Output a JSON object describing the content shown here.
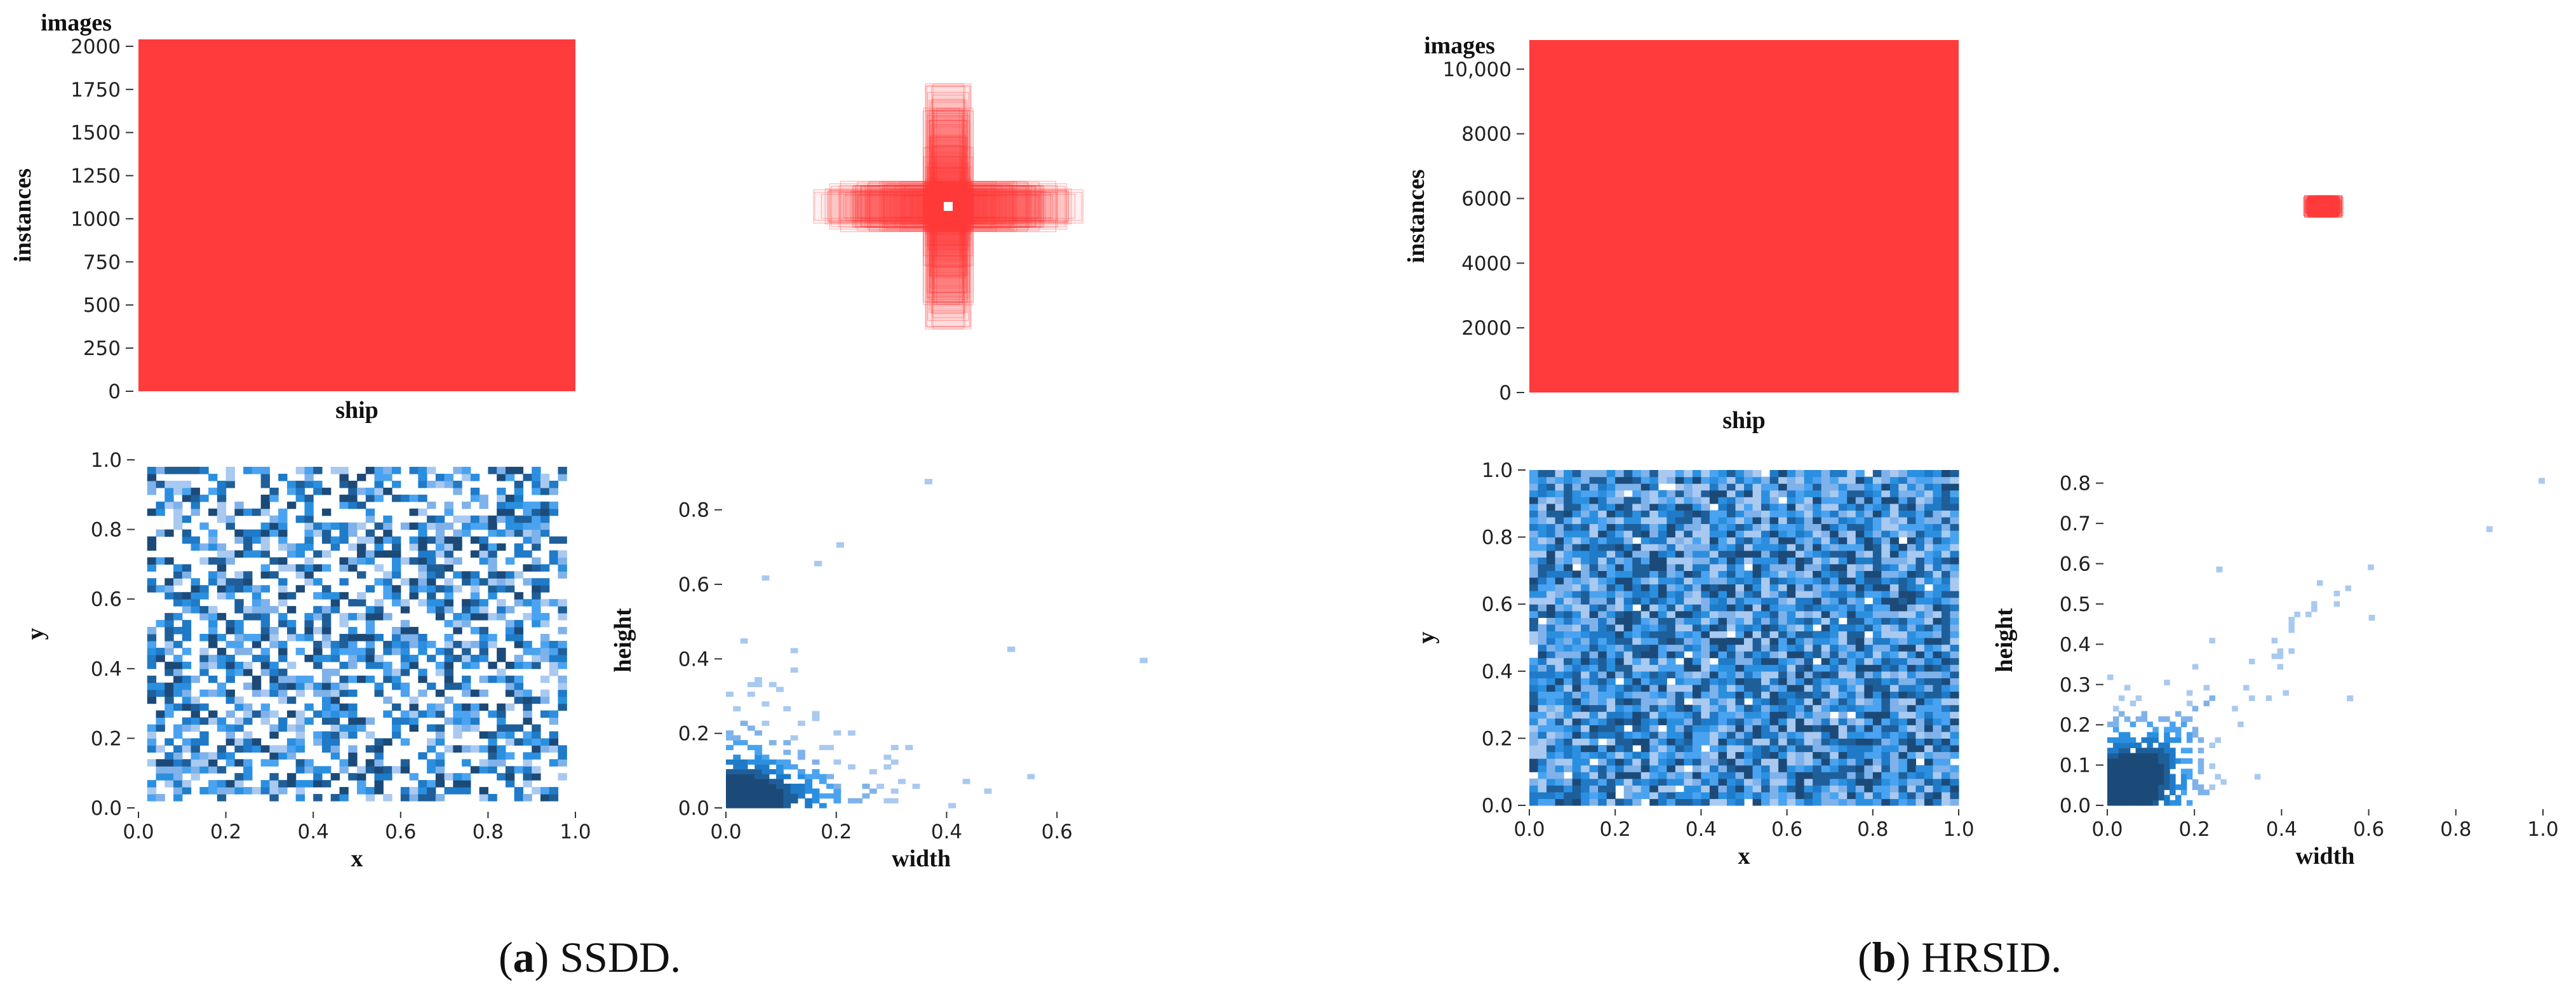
{
  "figure": {
    "panels": [
      {
        "caption_letter": "a",
        "caption_name": "SSDD.",
        "charts": [
          {
            "type": "bar",
            "categories": [
              "ship"
            ],
            "values": [
              2040
            ],
            "ylabel": "instances",
            "title": "images",
            "yticks": [
              "0",
              "250",
              "500",
              "750",
              "1000",
              "1250",
              "1500",
              "1750",
              "2000"
            ],
            "ytick_values": [
              0,
              250,
              500,
              750,
              1000,
              1250,
              1500,
              1750,
              2000
            ],
            "ylim": [
              0,
              2040
            ],
            "color": "#ff3b3b"
          },
          {
            "type": "box-overlay",
            "description_colors": "#ff3b3b",
            "center": [
              0.5,
              0.5
            ],
            "max_width": 0.75,
            "max_height": 0.88
          },
          {
            "type": "heatmap",
            "xlabel": "x",
            "ylabel": "y",
            "xlim": [
              0,
              1
            ],
            "ylim": [
              0,
              1
            ],
            "xticks": [
              "0.0",
              "0.2",
              "0.4",
              "0.6",
              "0.8",
              "1.0"
            ],
            "yticks": [
              "0.0",
              "0.2",
              "0.4",
              "0.6",
              "0.8",
              "1.0"
            ],
            "occupied_range_x": [
              0.03,
              0.97
            ],
            "occupied_range_y": [
              0.03,
              0.97
            ],
            "density": 0.55,
            "cmap": "blues"
          },
          {
            "type": "heatmap",
            "xlabel": "width",
            "ylabel": "height",
            "xlim": [
              0,
              0.8
            ],
            "ylim": [
              0,
              0.9
            ],
            "xticks": [
              "0.0",
              "0.2",
              "0.4",
              "0.6"
            ],
            "xtick_values": [
              0,
              0.2,
              0.4,
              0.6
            ],
            "yticks": [
              "0.0",
              "0.2",
              "0.4",
              "0.6",
              "0.8"
            ],
            "ytick_values": [
              0,
              0.2,
              0.4,
              0.6,
              0.8
            ],
            "peak": [
              0.03,
              0.05
            ],
            "outliers": [
              [
                0.36,
                0.87
              ],
              [
                0.51,
                0.42
              ],
              [
                0.75,
                0.39
              ],
              [
                0.2,
                0.7
              ],
              [
                0.16,
                0.65
              ]
            ],
            "cmap": "blues"
          }
        ]
      },
      {
        "caption_letter": "b",
        "caption_name": "HRSID.",
        "charts": [
          {
            "type": "bar",
            "categories": [
              "ship"
            ],
            "values": [
              10900
            ],
            "ylabel": "instances",
            "title": "images",
            "yticks": [
              "0",
              "2000",
              "4000",
              "6000",
              "8000",
              "10,000"
            ],
            "ytick_values": [
              0,
              2000,
              4000,
              6000,
              8000,
              10000
            ],
            "ylim": [
              0,
              10900
            ],
            "color": "#ff3b3b"
          },
          {
            "type": "box-overlay",
            "description_colors": "#ff3b3b",
            "center": [
              0.5,
              0.5
            ],
            "max_width": 0.11,
            "max_height": 0.08
          },
          {
            "type": "heatmap",
            "xlabel": "x",
            "ylabel": "y",
            "xlim": [
              0,
              1
            ],
            "ylim": [
              0,
              1
            ],
            "xticks": [
              "0.0",
              "0.2",
              "0.4",
              "0.6",
              "0.8",
              "1.0"
            ],
            "yticks": [
              "0.0",
              "0.2",
              "0.4",
              "0.6",
              "0.8",
              "1.0"
            ],
            "occupied_range_x": [
              0,
              1
            ],
            "occupied_range_y": [
              0,
              1
            ],
            "density": 0.98,
            "cmap": "blues"
          },
          {
            "type": "heatmap",
            "xlabel": "width",
            "ylabel": "height",
            "xlim": [
              0,
              1
            ],
            "ylim": [
              0,
              0.82
            ],
            "xticks": [
              "0.0",
              "0.2",
              "0.4",
              "0.6",
              "0.8",
              "1.0"
            ],
            "xtick_values": [
              0,
              0.2,
              0.4,
              0.6,
              0.8,
              1.0
            ],
            "yticks": [
              "0.0",
              "0.1",
              "0.2",
              "0.3",
              "0.4",
              "0.5",
              "0.6",
              "0.7",
              "0.8"
            ],
            "ytick_values": [
              0,
              0.1,
              0.2,
              0.3,
              0.4,
              0.5,
              0.6,
              0.7,
              0.8
            ],
            "peak": [
              0.03,
              0.03
            ],
            "outliers": [
              [
                0.99,
                0.8
              ],
              [
                0.87,
                0.68
              ],
              [
                0.6,
                0.46
              ],
              [
                0.55,
                0.26
              ],
              [
                0.25,
                0.58
              ]
            ],
            "cmap": "blues"
          }
        ]
      }
    ]
  },
  "chart_data": [
    {
      "type": "bar",
      "categories": [
        "ship"
      ],
      "values": [
        2040
      ],
      "title": "images",
      "xlabel": "",
      "ylabel": "instances",
      "ylim": [
        0,
        2040
      ]
    },
    {
      "type": "heatmap",
      "xlabel": "x",
      "ylabel": "y",
      "xlim": [
        0,
        1
      ],
      "ylim": [
        0,
        1
      ]
    },
    {
      "type": "heatmap",
      "xlabel": "width",
      "ylabel": "height",
      "xlim": [
        0,
        0.8
      ],
      "ylim": [
        0,
        0.9
      ]
    },
    {
      "type": "bar",
      "categories": [
        "ship"
      ],
      "values": [
        10900
      ],
      "title": "images",
      "xlabel": "",
      "ylabel": "instances",
      "ylim": [
        0,
        10900
      ]
    },
    {
      "type": "heatmap",
      "xlabel": "x",
      "ylabel": "y",
      "xlim": [
        0,
        1
      ],
      "ylim": [
        0,
        1
      ]
    },
    {
      "type": "heatmap",
      "xlabel": "width",
      "ylabel": "height",
      "xlim": [
        0,
        1
      ],
      "ylim": [
        0,
        0.82
      ]
    }
  ]
}
